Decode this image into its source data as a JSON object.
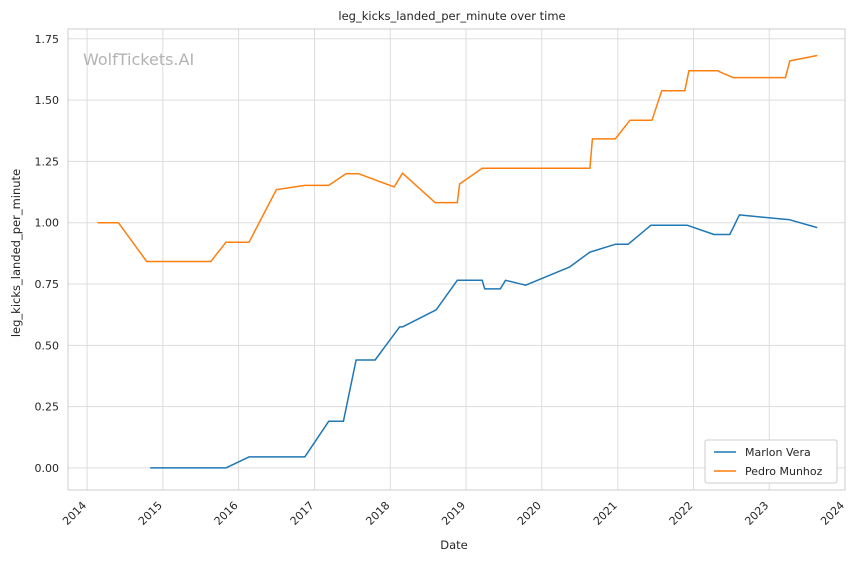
{
  "chart_data": {
    "type": "line",
    "title": "leg_kicks_landed_per_minute over time",
    "xlabel": "Date",
    "ylabel": "leg_kicks_landed_per_minute",
    "watermark": "WolfTickets.AI",
    "xlim": [
      "2013-10-01",
      "2024-01-01"
    ],
    "ylim": [
      -0.09,
      1.79
    ],
    "x_ticks": [
      "2014",
      "2015",
      "2016",
      "2017",
      "2018",
      "2019",
      "2020",
      "2021",
      "2022",
      "2023",
      "2024"
    ],
    "y_ticks": [
      "0.00",
      "0.25",
      "0.50",
      "0.75",
      "1.00",
      "1.25",
      "1.50",
      "1.75"
    ],
    "grid": true,
    "legend_position": "bottom-right",
    "series": [
      {
        "name": "Marlon Vera",
        "color": "#1f77b4",
        "points": [
          [
            "2014-11-01",
            0.0
          ],
          [
            "2015-11-01",
            0.0
          ],
          [
            "2016-02-20",
            0.045
          ],
          [
            "2016-11-15",
            0.045
          ],
          [
            "2017-03-10",
            0.19
          ],
          [
            "2017-05-20",
            0.19
          ],
          [
            "2017-07-20",
            0.44
          ],
          [
            "2017-10-20",
            0.44
          ],
          [
            "2018-02-15",
            0.575
          ],
          [
            "2018-03-01",
            0.575
          ],
          [
            "2018-08-10",
            0.645
          ],
          [
            "2018-11-20",
            0.765
          ],
          [
            "2019-03-20",
            0.765
          ],
          [
            "2019-04-01",
            0.73
          ],
          [
            "2019-06-15",
            0.73
          ],
          [
            "2019-07-10",
            0.765
          ],
          [
            "2019-10-15",
            0.745
          ],
          [
            "2020-05-15",
            0.82
          ],
          [
            "2020-08-20",
            0.88
          ],
          [
            "2020-12-20",
            0.912
          ],
          [
            "2021-02-20",
            0.912
          ],
          [
            "2021-06-10",
            0.99
          ],
          [
            "2021-12-01",
            0.99
          ],
          [
            "2022-04-10",
            0.952
          ],
          [
            "2022-06-25",
            0.952
          ],
          [
            "2022-08-10",
            1.032
          ],
          [
            "2023-04-10",
            1.012
          ],
          [
            "2023-08-20",
            0.98
          ]
        ]
      },
      {
        "name": "Pedro Munhoz",
        "color": "#ff7f0e",
        "points": [
          [
            "2014-02-20",
            1.0
          ],
          [
            "2014-06-01",
            1.0
          ],
          [
            "2014-10-15",
            0.842
          ],
          [
            "2015-08-20",
            0.842
          ],
          [
            "2015-11-01",
            0.92
          ],
          [
            "2016-02-20",
            0.92
          ],
          [
            "2016-07-01",
            1.135
          ],
          [
            "2016-11-15",
            1.152
          ],
          [
            "2017-03-10",
            1.152
          ],
          [
            "2017-06-01",
            1.2
          ],
          [
            "2017-08-01",
            1.2
          ],
          [
            "2018-01-20",
            1.146
          ],
          [
            "2018-03-01",
            1.202
          ],
          [
            "2018-08-05",
            1.082
          ],
          [
            "2018-11-20",
            1.082
          ],
          [
            "2018-12-01",
            1.158
          ],
          [
            "2019-03-20",
            1.222
          ],
          [
            "2020-08-20",
            1.222
          ],
          [
            "2020-09-01",
            1.342
          ],
          [
            "2020-12-20",
            1.342
          ],
          [
            "2021-03-01",
            1.418
          ],
          [
            "2021-06-15",
            1.418
          ],
          [
            "2021-08-01",
            1.538
          ],
          [
            "2021-11-20",
            1.538
          ],
          [
            "2021-12-10",
            1.62
          ],
          [
            "2022-04-25",
            1.62
          ],
          [
            "2022-07-10",
            1.592
          ],
          [
            "2023-03-20",
            1.592
          ],
          [
            "2023-04-10",
            1.66
          ],
          [
            "2023-08-20",
            1.682
          ]
        ]
      }
    ]
  }
}
